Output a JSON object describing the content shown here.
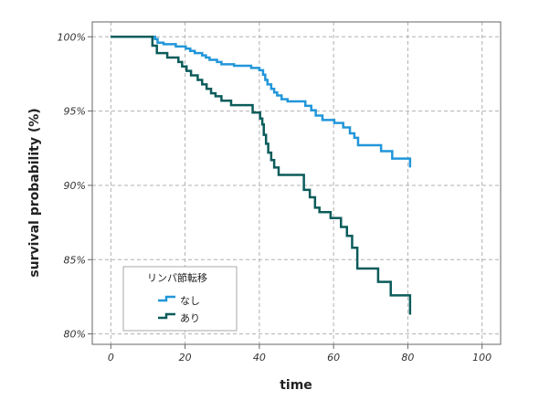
{
  "chart_data": {
    "type": "line",
    "title": "",
    "xlabel": "time",
    "ylabel": "survival probability (%)",
    "xlim": [
      -5,
      105
    ],
    "ylim": [
      79.3,
      101
    ],
    "x_ticks": [
      0,
      20,
      40,
      60,
      80,
      100
    ],
    "y_ticks": [
      80,
      85,
      90,
      95,
      100
    ],
    "x_tick_labels": [
      "0",
      "20",
      "40",
      "60",
      "80",
      "100"
    ],
    "y_tick_labels": [
      "80%",
      "85%",
      "90%",
      "95%",
      "100%"
    ],
    "grid": true,
    "legend": {
      "title": "リンパ節転移",
      "placement": "bottom-left"
    },
    "series": [
      {
        "name": "なし",
        "color": "#2196d9",
        "points": [
          [
            0,
            100
          ],
          [
            11.9,
            100
          ],
          [
            11.9,
            99.85
          ],
          [
            12.6,
            99.85
          ],
          [
            12.6,
            99.6
          ],
          [
            14.2,
            99.6
          ],
          [
            14.2,
            99.5
          ],
          [
            17.5,
            99.5
          ],
          [
            17.5,
            99.35
          ],
          [
            20.2,
            99.35
          ],
          [
            20.2,
            99.2
          ],
          [
            21.4,
            99.2
          ],
          [
            21.4,
            99.05
          ],
          [
            22.6,
            99.05
          ],
          [
            22.6,
            98.9
          ],
          [
            24.6,
            98.9
          ],
          [
            24.6,
            98.75
          ],
          [
            25.6,
            98.75
          ],
          [
            25.6,
            98.6
          ],
          [
            26.6,
            98.6
          ],
          [
            26.6,
            98.45
          ],
          [
            28.6,
            98.45
          ],
          [
            28.6,
            98.3
          ],
          [
            29.8,
            98.3
          ],
          [
            29.8,
            98.15
          ],
          [
            33.2,
            98.15
          ],
          [
            33.2,
            98.05
          ],
          [
            37.8,
            98.05
          ],
          [
            37.8,
            97.9
          ],
          [
            40.0,
            97.9
          ],
          [
            40.0,
            97.75
          ],
          [
            41.0,
            97.75
          ],
          [
            41.0,
            97.45
          ],
          [
            41.6,
            97.45
          ],
          [
            41.6,
            97.1
          ],
          [
            42.2,
            97.1
          ],
          [
            42.2,
            96.8
          ],
          [
            43.2,
            96.8
          ],
          [
            43.2,
            96.5
          ],
          [
            44.0,
            96.5
          ],
          [
            44.0,
            96.25
          ],
          [
            44.8,
            96.25
          ],
          [
            44.8,
            96.05
          ],
          [
            46.0,
            96.05
          ],
          [
            46.0,
            95.8
          ],
          [
            47.6,
            95.8
          ],
          [
            47.6,
            95.65
          ],
          [
            52.4,
            95.65
          ],
          [
            52.4,
            95.35
          ],
          [
            54.0,
            95.35
          ],
          [
            54.0,
            95.05
          ],
          [
            55.2,
            95.05
          ],
          [
            55.2,
            94.7
          ],
          [
            57.0,
            94.7
          ],
          [
            57.0,
            94.4
          ],
          [
            60.2,
            94.4
          ],
          [
            60.2,
            94.2
          ],
          [
            62.6,
            94.2
          ],
          [
            62.6,
            93.9
          ],
          [
            64.4,
            93.9
          ],
          [
            64.4,
            93.5
          ],
          [
            65.6,
            93.5
          ],
          [
            65.6,
            93.2
          ],
          [
            66.6,
            93.2
          ],
          [
            66.6,
            92.7
          ],
          [
            72.8,
            92.7
          ],
          [
            72.8,
            92.3
          ],
          [
            75.8,
            92.3
          ],
          [
            75.8,
            91.8
          ],
          [
            80.6,
            91.8
          ],
          [
            80.6,
            91.2
          ]
        ]
      },
      {
        "name": "あり",
        "color": "#0b5c5b",
        "points": [
          [
            0,
            100
          ],
          [
            11.2,
            100
          ],
          [
            11.2,
            99.4
          ],
          [
            12.4,
            99.4
          ],
          [
            12.4,
            98.9
          ],
          [
            15.2,
            98.9
          ],
          [
            15.2,
            98.6
          ],
          [
            18.2,
            98.6
          ],
          [
            18.2,
            98.3
          ],
          [
            19.2,
            98.3
          ],
          [
            19.2,
            98.0
          ],
          [
            20.4,
            98.0
          ],
          [
            20.4,
            97.7
          ],
          [
            21.6,
            97.7
          ],
          [
            21.6,
            97.4
          ],
          [
            23.4,
            97.4
          ],
          [
            23.4,
            97.1
          ],
          [
            24.6,
            97.1
          ],
          [
            24.6,
            96.8
          ],
          [
            25.8,
            96.8
          ],
          [
            25.8,
            96.5
          ],
          [
            27.0,
            96.5
          ],
          [
            27.0,
            96.2
          ],
          [
            28.2,
            96.2
          ],
          [
            28.2,
            96.0
          ],
          [
            29.8,
            96.0
          ],
          [
            29.8,
            95.7
          ],
          [
            32.4,
            95.7
          ],
          [
            32.4,
            95.4
          ],
          [
            38.2,
            95.4
          ],
          [
            38.2,
            94.9
          ],
          [
            40.2,
            94.9
          ],
          [
            40.2,
            94.5
          ],
          [
            40.8,
            94.5
          ],
          [
            40.8,
            94.1
          ],
          [
            41.2,
            94.1
          ],
          [
            41.2,
            93.4
          ],
          [
            41.8,
            93.4
          ],
          [
            41.8,
            92.8
          ],
          [
            42.4,
            92.8
          ],
          [
            42.4,
            92.2
          ],
          [
            43.2,
            92.2
          ],
          [
            43.2,
            91.7
          ],
          [
            44.0,
            91.7
          ],
          [
            44.0,
            91.2
          ],
          [
            45.2,
            91.2
          ],
          [
            45.2,
            90.7
          ],
          [
            52.0,
            90.7
          ],
          [
            52.0,
            89.7
          ],
          [
            53.6,
            89.7
          ],
          [
            53.6,
            89.2
          ],
          [
            55.0,
            89.2
          ],
          [
            55.0,
            88.5
          ],
          [
            56.2,
            88.5
          ],
          [
            56.2,
            88.2
          ],
          [
            59.2,
            88.2
          ],
          [
            59.2,
            87.8
          ],
          [
            62.0,
            87.8
          ],
          [
            62.0,
            87.2
          ],
          [
            63.6,
            87.2
          ],
          [
            63.6,
            86.6
          ],
          [
            65.0,
            86.6
          ],
          [
            65.0,
            85.8
          ],
          [
            66.4,
            85.8
          ],
          [
            66.4,
            84.4
          ],
          [
            72.0,
            84.4
          ],
          [
            72.0,
            83.5
          ],
          [
            75.4,
            83.5
          ],
          [
            75.4,
            82.6
          ],
          [
            80.6,
            82.6
          ],
          [
            80.6,
            81.3
          ]
        ]
      }
    ]
  }
}
